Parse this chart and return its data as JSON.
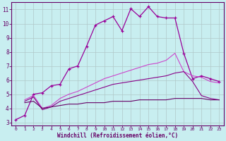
{
  "xlabel": "Windchill (Refroidissement éolien,°C)",
  "bg_color": "#c8eef0",
  "grid_color": "#b0c8c8",
  "xlim": [
    -0.5,
    23.5
  ],
  "ylim": [
    2.8,
    11.5
  ],
  "xticks": [
    0,
    1,
    2,
    3,
    4,
    5,
    6,
    7,
    8,
    9,
    10,
    11,
    12,
    13,
    14,
    15,
    16,
    17,
    18,
    19,
    20,
    21,
    22,
    23
  ],
  "yticks": [
    3,
    4,
    5,
    6,
    7,
    8,
    9,
    10,
    11
  ],
  "line1_x": [
    0,
    1,
    2,
    3,
    4,
    5,
    6,
    7,
    8,
    9,
    10,
    11,
    12,
    13,
    14,
    15,
    16,
    17,
    18,
    19,
    20,
    21,
    22,
    23
  ],
  "line1_y": [
    3.2,
    3.5,
    5.0,
    5.1,
    5.6,
    5.7,
    6.8,
    7.0,
    8.4,
    9.9,
    10.2,
    10.5,
    9.5,
    11.05,
    10.5,
    11.2,
    10.5,
    10.4,
    10.4,
    7.9,
    6.1,
    6.3,
    6.1,
    5.9
  ],
  "line2_x": [
    1,
    2,
    3,
    4,
    5,
    6,
    7,
    8,
    9,
    10,
    11,
    12,
    13,
    14,
    15,
    16,
    17,
    18,
    19,
    20,
    21,
    22,
    23
  ],
  "line2_y": [
    4.6,
    4.9,
    4.0,
    4.2,
    4.7,
    5.0,
    5.2,
    5.5,
    5.8,
    6.1,
    6.3,
    6.5,
    6.7,
    6.9,
    7.1,
    7.2,
    7.4,
    7.9,
    6.6,
    6.3,
    6.2,
    5.9,
    5.8
  ],
  "line3_x": [
    1,
    2,
    3,
    4,
    5,
    6,
    7,
    8,
    9,
    10,
    11,
    12,
    13,
    14,
    15,
    16,
    17,
    18,
    19,
    20,
    21,
    22,
    23
  ],
  "line3_y": [
    4.5,
    4.8,
    3.9,
    4.1,
    4.5,
    4.7,
    4.9,
    5.1,
    5.3,
    5.5,
    5.7,
    5.8,
    5.9,
    6.0,
    6.1,
    6.2,
    6.3,
    6.5,
    6.6,
    5.9,
    4.9,
    4.7,
    4.6
  ],
  "line4_x": [
    1,
    2,
    3,
    4,
    5,
    6,
    7,
    8,
    9,
    10,
    11,
    12,
    13,
    14,
    15,
    16,
    17,
    18,
    19,
    20,
    21,
    22,
    23
  ],
  "line4_y": [
    4.4,
    4.5,
    4.0,
    4.1,
    4.2,
    4.3,
    4.3,
    4.4,
    4.4,
    4.4,
    4.5,
    4.5,
    4.5,
    4.6,
    4.6,
    4.6,
    4.6,
    4.7,
    4.7,
    4.7,
    4.7,
    4.6,
    4.6
  ],
  "line1_color": "#990099",
  "line2_color": "#cc44cc",
  "line3_color": "#880088",
  "line4_color": "#660066"
}
